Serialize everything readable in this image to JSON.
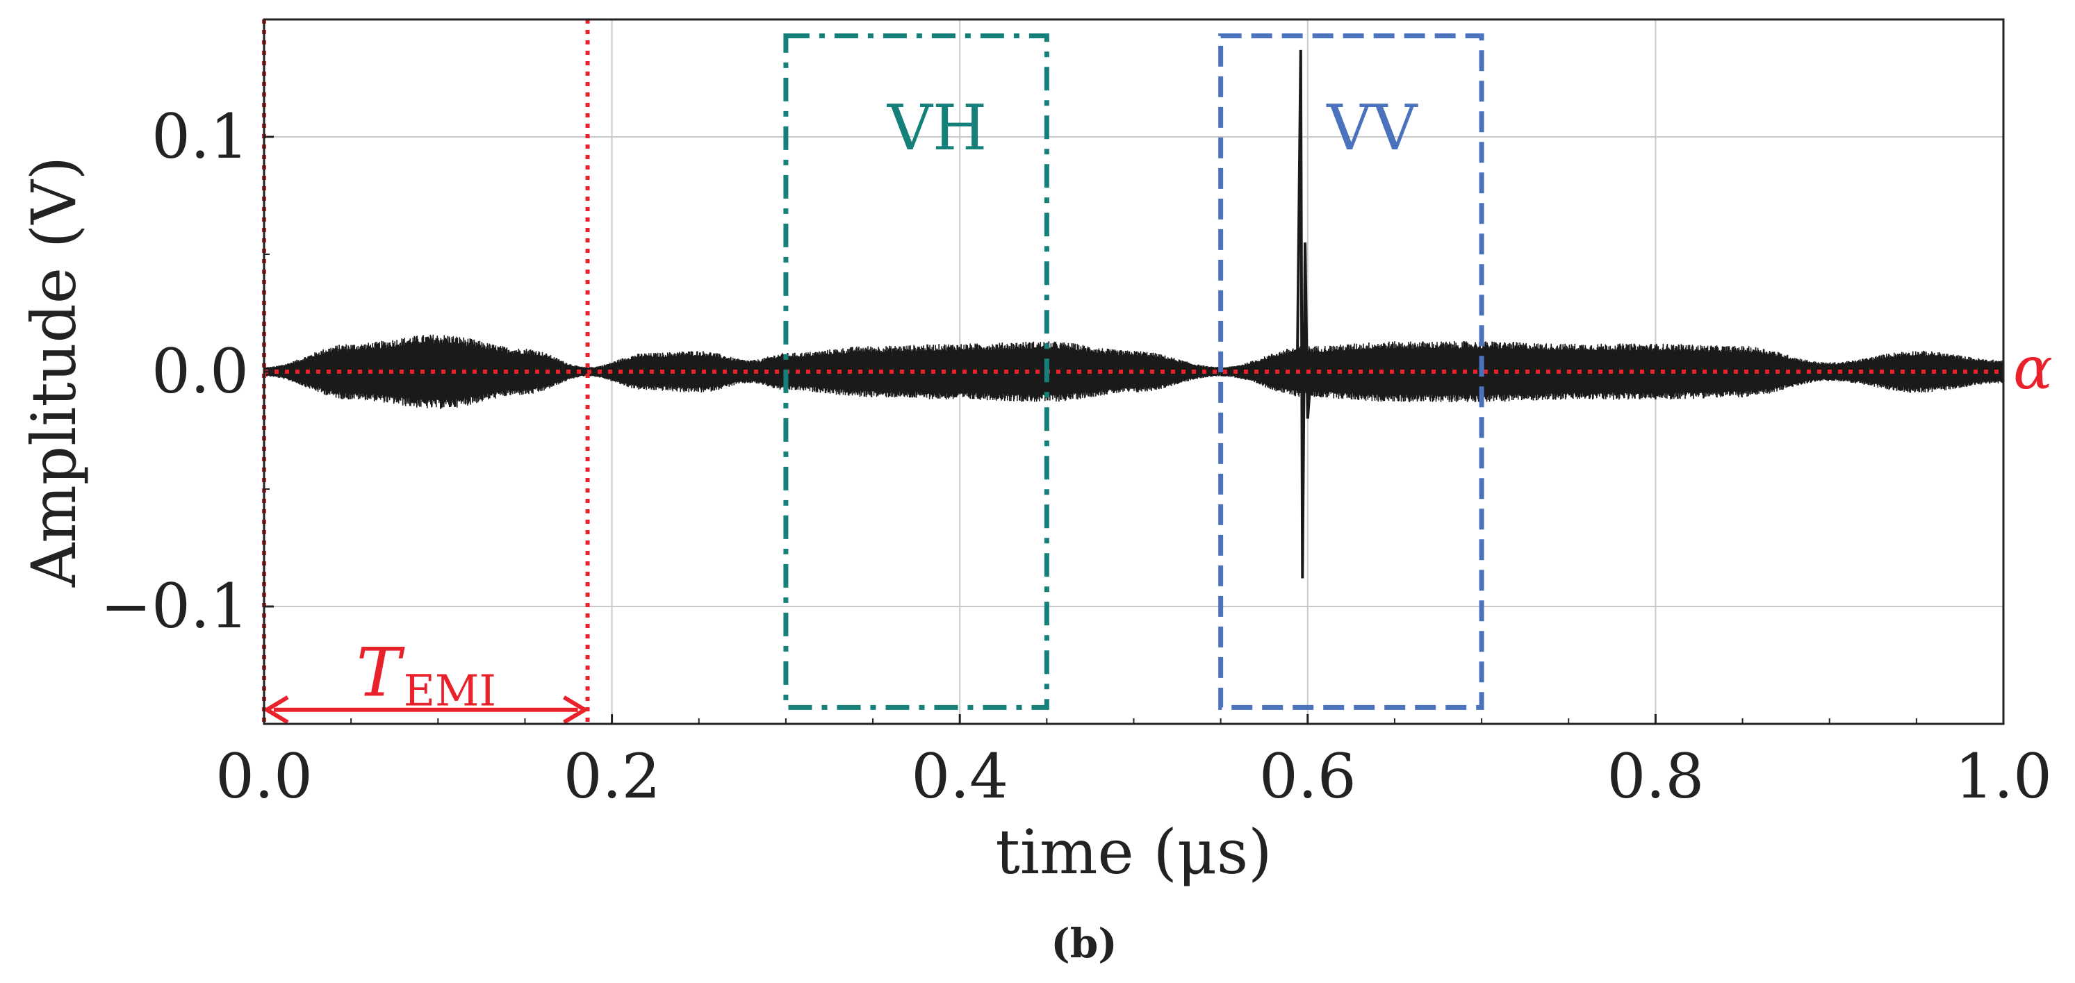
{
  "chart_data": {
    "type": "line",
    "title": "",
    "xlabel": "time (μs)",
    "ylabel": "Amplitude (V)",
    "xlim": [
      0.0,
      1.0
    ],
    "ylim": [
      -0.15,
      0.15
    ],
    "grid": true,
    "x_ticks": [
      0.0,
      0.2,
      0.4,
      0.6,
      0.8,
      1.0
    ],
    "x_tick_labels": [
      "0.0",
      "0.2",
      "0.4",
      "0.6",
      "0.8",
      "1.0"
    ],
    "y_ticks": [
      -0.1,
      0.0,
      0.1
    ],
    "y_tick_labels": [
      "−0.1",
      "0.0",
      "0.1"
    ],
    "series": [
      {
        "name": "signal",
        "color": "#1a1a1a",
        "envelope_x": [
          0.0,
          0.05,
          0.1,
          0.15,
          0.186,
          0.22,
          0.25,
          0.28,
          0.3,
          0.35,
          0.4,
          0.45,
          0.5,
          0.55,
          0.6,
          0.65,
          0.7,
          0.75,
          0.8,
          0.85,
          0.9,
          0.95,
          1.0
        ],
        "envelope_amplitude": [
          0.002,
          0.012,
          0.016,
          0.01,
          0.002,
          0.008,
          0.009,
          0.005,
          0.008,
          0.011,
          0.012,
          0.013,
          0.009,
          0.002,
          0.011,
          0.013,
          0.013,
          0.012,
          0.012,
          0.011,
          0.004,
          0.009,
          0.005
        ],
        "spike": {
          "x": 0.597,
          "max": 0.137,
          "min": -0.088
        }
      }
    ],
    "threshold_line": {
      "label": "α",
      "y": 0.0,
      "color": "#e8212a",
      "style": "dotted"
    },
    "emi_markers": {
      "x": [
        0.0,
        0.186
      ],
      "color": "#e8212a",
      "style": "dotted"
    },
    "emi_span": {
      "label": "T",
      "subscript": "EMI",
      "x_start": 0.0,
      "x_end": 0.186,
      "y": -0.144,
      "color": "#e8212a"
    },
    "boxes": [
      {
        "label": "VH",
        "x_start": 0.3,
        "x_end": 0.45,
        "y_low": -0.143,
        "y_high": 0.143,
        "color": "#15807a",
        "style": "dashdot"
      },
      {
        "label": "VV",
        "x_start": 0.55,
        "x_end": 0.7,
        "y_low": -0.143,
        "y_high": 0.143,
        "color": "#4a72bd",
        "style": "dashed"
      }
    ],
    "caption": "(b)"
  }
}
